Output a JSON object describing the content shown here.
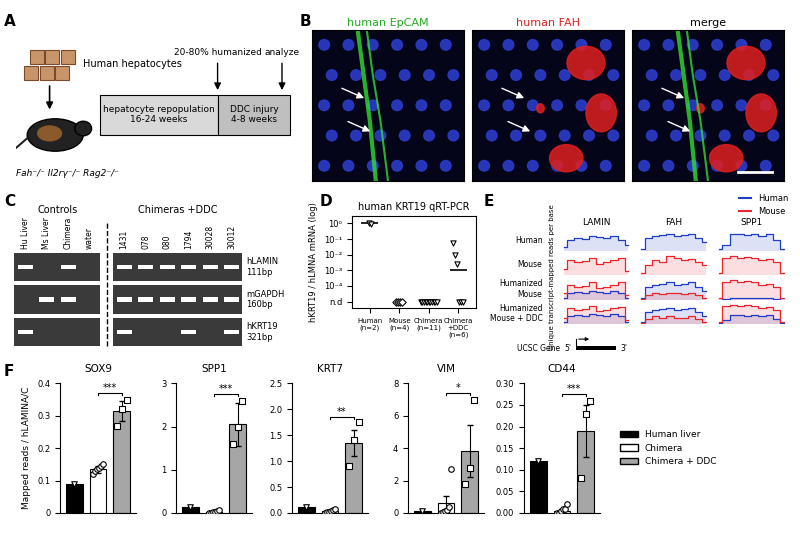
{
  "panels": {
    "letters": [
      "A",
      "B",
      "C",
      "D",
      "E",
      "F"
    ],
    "A": {
      "cells_label": "Human hepatocytes",
      "mouse_label": "Fah⁻/⁻ Il2rγ⁻/⁻ Rag2⁻/⁻",
      "humanized": "20-80% humanized",
      "analyze": "analyze",
      "phases": [
        "hepatocyte repopulation\n16-24 weeks",
        "DDC injury\n4-8 weeks"
      ]
    },
    "B": {
      "images": [
        {
          "title": "human EpCAM",
          "color": "#22aa22"
        },
        {
          "title": "human FAH",
          "color": "#dd2222"
        },
        {
          "title": "merge",
          "color": "#000000"
        }
      ]
    },
    "C": {
      "groups": [
        {
          "name": "Controls",
          "lanes": [
            "Hu Liver",
            "Ms Liver",
            "Chimera",
            "water"
          ]
        },
        {
          "name": "Chimeras +DDC",
          "lanes": [
            "1431",
            "078",
            "080",
            "1794",
            "30028",
            "30012"
          ]
        }
      ],
      "rows": [
        {
          "gene": "hLAMIN",
          "size": "111bp",
          "bands": [
            true,
            false,
            true,
            false,
            true,
            true,
            true,
            true,
            true,
            true
          ]
        },
        {
          "gene": "mGAPDH",
          "size": "160bp",
          "bands": [
            false,
            true,
            true,
            false,
            true,
            true,
            true,
            true,
            true,
            true
          ]
        },
        {
          "gene": "hKRT19",
          "size": "321bp",
          "bands": [
            true,
            false,
            false,
            false,
            true,
            false,
            false,
            true,
            false,
            true
          ]
        }
      ]
    },
    "E": {
      "genes": [
        "LAMIN",
        "FAH",
        "SPP1"
      ],
      "legend": "upper right",
      "species": [
        {
          "name": "Human",
          "color": "#1f3cc8"
        },
        {
          "name": "Mouse",
          "color": "#e8262a"
        }
      ],
      "ylabel": "Unique transcript-mapped reads per base",
      "gene_label": "UCSC Gene",
      "ends": [
        "5'",
        "3'"
      ],
      "ylim": [
        0,
        1
      ],
      "rows": [
        {
          "name": "Human",
          "tracks": [
            {
              "Human": [
                0.2,
                0.5,
                0.6,
                0.55,
                0.7,
                0.65,
                0.6,
                0.7,
                0.5,
                0.3
              ],
              "Mouse": null
            },
            {
              "Human": [
                0.1,
                0.6,
                0.7,
                0.75,
                0.8,
                0.7,
                0.75,
                0.8,
                0.6,
                0.4
              ],
              "Mouse": null
            },
            {
              "Human": [
                0.1,
                0.3,
                0.8,
                0.8,
                0.75,
                0.8,
                0.7,
                0.8,
                0.5,
                0.1
              ],
              "Mouse": null
            }
          ]
        },
        {
          "name": "Mouse",
          "tracks": [
            {
              "Human": null,
              "Mouse": [
                0.3,
                0.7,
                0.6,
                0.65,
                0.8,
                0.55,
                0.6,
                0.7,
                0.8,
                0.2
              ]
            },
            {
              "Human": null,
              "Mouse": [
                0.1,
                0.5,
                0.7,
                0.6,
                0.9,
                0.8,
                0.7,
                0.75,
                0.6,
                0.5
              ]
            },
            {
              "Human": null,
              "Mouse": [
                0.1,
                0.8,
                0.9,
                0.8,
                0.85,
                0.8,
                0.7,
                0.75,
                0.6,
                0.1
              ]
            }
          ]
        },
        {
          "name": "Humanized\nMouse",
          "tracks": [
            {
              "Human": [
                0.1,
                0.3,
                0.35,
                0.3,
                0.4,
                0.35,
                0.3,
                0.4,
                0.3,
                0.1
              ],
              "Mouse": [
                0.3,
                0.7,
                0.6,
                0.65,
                0.8,
                0.55,
                0.6,
                0.7,
                0.8,
                0.2
              ]
            },
            {
              "Human": [
                0.1,
                0.6,
                0.7,
                0.75,
                0.8,
                0.7,
                0.75,
                0.8,
                0.6,
                0.4
              ],
              "Mouse": [
                0.05,
                0.2,
                0.3,
                0.25,
                0.3,
                0.3,
                0.25,
                0.3,
                0.2,
                0.1
              ]
            },
            {
              "Human": [
                0.0,
                0.05,
                0.1,
                0.1,
                0.1,
                0.1,
                0.1,
                0.1,
                0.05,
                0.0
              ],
              "Mouse": [
                0.1,
                0.8,
                0.9,
                0.8,
                0.85,
                0.8,
                0.7,
                0.75,
                0.6,
                0.1
              ]
            }
          ]
        },
        {
          "name": "Humanized\nMouse + DDC",
          "tracks": [
            {
              "Human": [
                0.1,
                0.35,
                0.4,
                0.35,
                0.45,
                0.4,
                0.35,
                0.45,
                0.35,
                0.1
              ],
              "Mouse": [
                0.3,
                0.75,
                0.65,
                0.7,
                0.85,
                0.6,
                0.65,
                0.75,
                0.8,
                0.2
              ]
            },
            {
              "Human": [
                0.1,
                0.55,
                0.65,
                0.7,
                0.75,
                0.65,
                0.7,
                0.75,
                0.55,
                0.35
              ],
              "Mouse": [
                0.05,
                0.25,
                0.35,
                0.3,
                0.35,
                0.3,
                0.3,
                0.35,
                0.25,
                0.1
              ]
            },
            {
              "Human": [
                0.05,
                0.2,
                0.4,
                0.4,
                0.35,
                0.4,
                0.35,
                0.4,
                0.25,
                0.05
              ],
              "Mouse": [
                0.1,
                0.85,
                0.9,
                0.85,
                0.9,
                0.85,
                0.75,
                0.8,
                0.65,
                0.1
              ]
            }
          ]
        }
      ]
    }
  },
  "chart_data": [
    {
      "type": "scatter",
      "title": "human KRT19 qRT-PCR",
      "ylabel": "hKRT19 / hLMNA mRNA (log)",
      "log": "y",
      "categories": [
        "Human\n(n=2)",
        "Mouse\n(n=4)",
        "Chimera\n(n=11)",
        "Chimera\n+DDC\n(n=6)"
      ],
      "points": [
        [
          1.0,
          0.9
        ],
        [
          1e-05,
          1e-05,
          1e-05,
          1e-05
        ],
        [
          1e-05,
          1e-05,
          1e-05,
          1e-05,
          1e-05,
          1e-05,
          1e-05,
          1e-05,
          1e-05,
          1e-05,
          1e-05
        ],
        [
          0.06,
          0.01,
          0.0025,
          1e-05,
          1e-05,
          1e-05
        ]
      ],
      "means": [
        1.0,
        null,
        null,
        0.001
      ],
      "ylim": [
        4e-06,
        3
      ],
      "yticks": [
        {
          "value": 1e-05,
          "label": "n.d"
        },
        {
          "value": 0.0001,
          "label": "10⁻⁴"
        },
        {
          "value": 0.001,
          "label": "10⁻³"
        },
        {
          "value": 0.01,
          "label": "10⁻²"
        },
        {
          "value": 0.1,
          "label": "10⁻¹"
        },
        {
          "value": 1,
          "label": "10⁰"
        }
      ]
    },
    {
      "type": "bar",
      "title": "SOX9",
      "ylabel": "Mapped reads / hLAMINA/C",
      "categories": [
        "Human liver",
        "Chimera",
        "Chimera + DDC"
      ],
      "colors": [
        "#000000",
        "#ffffff",
        "#a6a6a6"
      ],
      "values": [
        0.09,
        0.135,
        0.315
      ],
      "errors": [
        null,
        0.01,
        0.03
      ],
      "points": [
        [
          0.09
        ],
        [
          0.12,
          0.13,
          0.135,
          0.14,
          0.145,
          0.15
        ],
        [
          0.27,
          0.32,
          0.35
        ]
      ],
      "ylim": [
        0,
        0.4
      ],
      "yticks": [
        0,
        0.1,
        0.2,
        0.3,
        0.4
      ],
      "tick_labels": "y",
      "annotations": [
        {
          "between": [
            "Chimera",
            "Chimera + DDC"
          ],
          "text": "***"
        }
      ]
    },
    {
      "type": "bar",
      "title": "SPP1",
      "categories": [
        "Human liver",
        "Chimera",
        "Chimera + DDC"
      ],
      "colors": [
        "#000000",
        "#ffffff",
        "#a6a6a6"
      ],
      "values": [
        0.15,
        0.03,
        2.05
      ],
      "errors": [
        null,
        0.01,
        0.5
      ],
      "points": [
        [
          0.15
        ],
        [
          0.0,
          0.01,
          0.02,
          0.03,
          0.05,
          0.07
        ],
        [
          1.6,
          2.0,
          2.6
        ]
      ],
      "ylim": [
        0,
        3
      ],
      "yticks": [
        0,
        1,
        2,
        3
      ],
      "tick_labels": "y",
      "annotations": [
        {
          "between": [
            "Chimera",
            "Chimera + DDC"
          ],
          "text": "***"
        }
      ]
    },
    {
      "type": "bar",
      "title": "KRT7",
      "categories": [
        "Human liver",
        "Chimera",
        "Chimera + DDC"
      ],
      "colors": [
        "#000000",
        "#ffffff",
        "#a6a6a6"
      ],
      "values": [
        0.12,
        0.03,
        1.35
      ],
      "errors": [
        null,
        0.01,
        0.25
      ],
      "points": [
        [
          0.12
        ],
        [
          0.0,
          0.01,
          0.02,
          0.03,
          0.05,
          0.07
        ],
        [
          0.9,
          1.4,
          1.75
        ]
      ],
      "ylim": [
        0,
        2.5
      ],
      "yticks": [
        {
          "value": 0,
          "label": "0.0"
        },
        {
          "value": 0.5,
          "label": "0.5"
        },
        {
          "value": 1,
          "label": "1.0"
        },
        {
          "value": 1.5,
          "label": "1.5"
        },
        {
          "value": 2,
          "label": "2.0"
        },
        {
          "value": 2.5,
          "label": "2.5"
        }
      ],
      "tick_labels": "y",
      "annotations": [
        {
          "between": [
            "Chimera",
            "Chimera + DDC"
          ],
          "text": "**"
        }
      ]
    },
    {
      "type": "bar",
      "title": "VIM",
      "categories": [
        "Human liver",
        "Chimera",
        "Chimera + DDC"
      ],
      "colors": [
        "#000000",
        "#ffffff",
        "#a6a6a6"
      ],
      "values": [
        0.1,
        0.6,
        3.85
      ],
      "errors": [
        null,
        0.45,
        1.6
      ],
      "points": [
        [
          0.1
        ],
        [
          0.0,
          0.05,
          0.1,
          0.2,
          0.4,
          2.7
        ],
        [
          1.8,
          2.8,
          7.0
        ]
      ],
      "ylim": [
        0,
        8
      ],
      "yticks": [
        0,
        2,
        4,
        6,
        8
      ],
      "tick_labels": "y",
      "annotations": [
        {
          "between": [
            "Chimera",
            "Chimera + DDC"
          ],
          "text": "*"
        }
      ]
    },
    {
      "type": "bar",
      "title": "CD44",
      "categories": [
        "Human liver",
        "Chimera",
        "Chimera + DDC"
      ],
      "colors": [
        "#000000",
        "#ffffff",
        "#a6a6a6"
      ],
      "values": [
        0.12,
        0.005,
        0.19
      ],
      "errors": [
        null,
        0.003,
        0.06
      ],
      "points": [
        [
          0.12
        ],
        [
          0.0,
          0.0,
          0.005,
          0.01,
          0.01,
          0.02
        ],
        [
          0.08,
          0.23,
          0.26
        ]
      ],
      "ylim": [
        0,
        0.3
      ],
      "yticks": [
        {
          "value": 0,
          "label": "0.00"
        },
        {
          "value": 0.05,
          "label": "0.05"
        },
        {
          "value": 0.1,
          "label": "0.10"
        },
        {
          "value": 0.15,
          "label": "0.15"
        },
        {
          "value": 0.2,
          "label": "0.20"
        },
        {
          "value": 0.25,
          "label": "0.25"
        },
        {
          "value": 0.3,
          "label": "0.30"
        }
      ],
      "tick_labels": "y",
      "legend": "right",
      "annotations": [
        {
          "between": [
            "Chimera",
            "Chimera + DDC"
          ],
          "text": "***"
        }
      ]
    }
  ]
}
